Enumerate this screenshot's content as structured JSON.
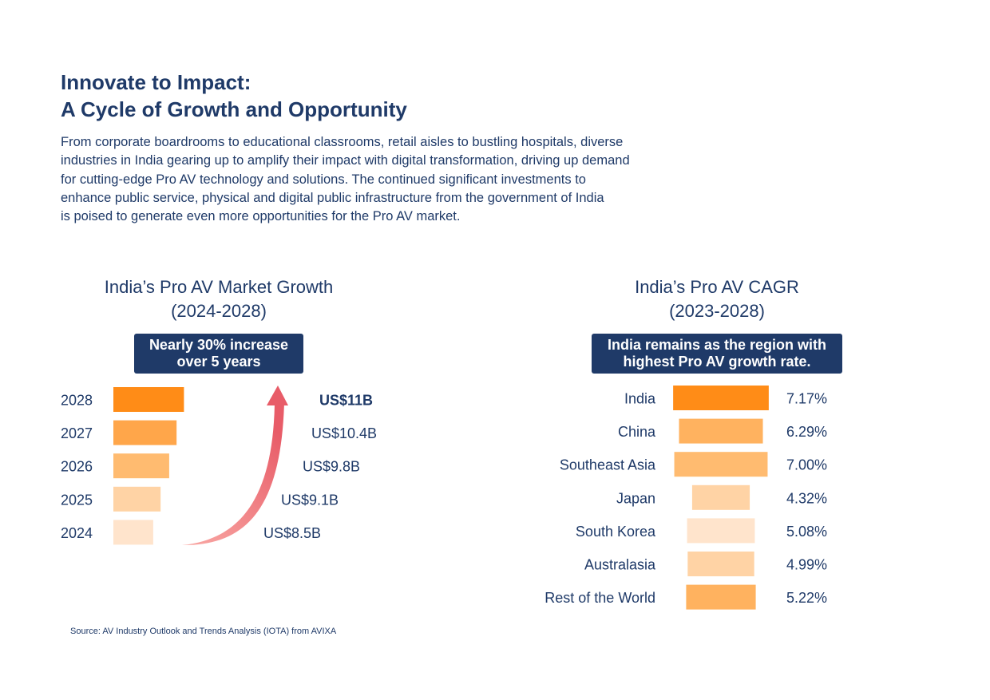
{
  "header": {
    "title_line1": "Innovate to Impact:",
    "title_line2": "A Cycle of Growth and Opportunity",
    "intro_lines": [
      "From corporate boardrooms to educational classrooms, retail aisles to bustling hospitals, diverse",
      "industries in India gearing up to amplify their impact with digital transformation, driving up demand",
      "for cutting-edge Pro AV technology and solutions. The continued significant investments to",
      "enhance public service, physical and digital public infrastructure from the government of India",
      "is poised to generate even more opportunities for the Pro AV market."
    ]
  },
  "market_growth": {
    "title_line1": "India’s Pro AV Market Growth",
    "title_line2": "(2024-2028)",
    "callout_line1": "Nearly 30% increase",
    "callout_line2": "over 5 years"
  },
  "cagr": {
    "title_line1": "India’s Pro AV CAGR",
    "title_line2": "(2023-2028)",
    "callout_line1": "India remains as the region with",
    "callout_line2": "highest Pro AV growth rate."
  },
  "chart_data": [
    {
      "type": "bar",
      "orientation": "horizontal",
      "title": "India’s Pro AV Market Growth (2024-2028)",
      "categories": [
        "2028",
        "2027",
        "2026",
        "2025",
        "2024"
      ],
      "values": [
        11,
        10.4,
        9.8,
        9.1,
        8.5
      ],
      "value_labels": [
        "US$11B",
        "US$10.4B",
        "US$9.8B",
        "US$9.1B",
        "US$8.5B"
      ],
      "colors": [
        "#ff8c17",
        "#ffa64a",
        "#ffbb70",
        "#ffd3a5",
        "#ffe4cc"
      ],
      "bold_label_index": 0,
      "arrow_colors": [
        "#f9a8a4",
        "#e85c68"
      ]
    },
    {
      "type": "bar",
      "orientation": "horizontal",
      "title": "India’s Pro AV CAGR (2023-2028)",
      "categories": [
        "India",
        "China",
        "Southeast Asia",
        "Japan",
        "South Korea",
        "Australasia",
        "Rest of the World"
      ],
      "values": [
        7.17,
        6.29,
        7.0,
        4.32,
        5.08,
        4.99,
        5.22
      ],
      "value_labels": [
        "7.17%",
        "6.29%",
        "7.00%",
        "4.32%",
        "5.08%",
        "4.99%",
        "5.22%"
      ],
      "colors": [
        "#ff8c17",
        "#ffb25f",
        "#ffbb70",
        "#ffd3a5",
        "#ffe4cc",
        "#ffd3a5",
        "#ffb25f"
      ]
    }
  ],
  "footer": {
    "source": "Source: AV Industry Outlook and Trends Analysis (IOTA) from AVIXA"
  }
}
